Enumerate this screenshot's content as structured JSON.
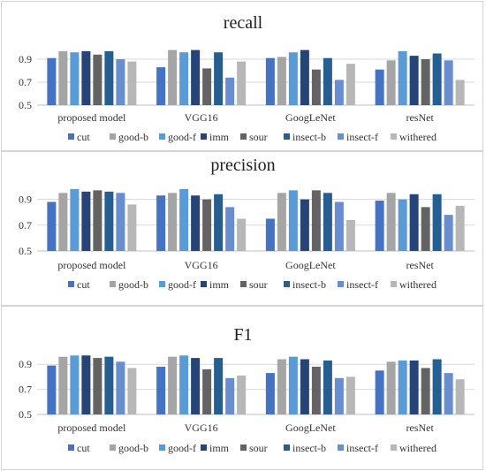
{
  "legend": {
    "series_names": [
      "cut",
      "good-b",
      "good-f",
      "imm",
      "sour",
      "insect-b",
      "insect-f",
      "withered"
    ],
    "colors": [
      "#4472c4",
      "#a5a5a5",
      "#5b9bd5",
      "#264478",
      "#636363",
      "#255e91",
      "#698ed0",
      "#b7b7b7"
    ]
  },
  "chart_data": [
    {
      "type": "bar",
      "title": "recall",
      "categories": [
        "proposed model",
        "VGG16",
        "GoogLeNet",
        "resNet"
      ],
      "ylim": [
        0.5,
        1.0
      ],
      "yticks": [
        "0.5",
        "0.7",
        "0.9"
      ],
      "series": [
        {
          "name": "cut",
          "values": [
            0.91,
            0.83,
            0.91,
            0.81
          ]
        },
        {
          "name": "good-b",
          "values": [
            0.97,
            0.98,
            0.92,
            0.89
          ]
        },
        {
          "name": "good-f",
          "values": [
            0.96,
            0.96,
            0.96,
            0.97
          ]
        },
        {
          "name": "imm",
          "values": [
            0.97,
            0.98,
            0.98,
            0.93
          ]
        },
        {
          "name": "sour",
          "values": [
            0.94,
            0.82,
            0.81,
            0.9
          ]
        },
        {
          "name": "insect-b",
          "values": [
            0.97,
            0.96,
            0.91,
            0.95
          ]
        },
        {
          "name": "insect-f",
          "values": [
            0.9,
            0.74,
            0.72,
            0.89
          ]
        },
        {
          "name": "withered",
          "values": [
            0.88,
            0.88,
            0.86,
            0.72
          ]
        }
      ]
    },
    {
      "type": "bar",
      "title": "precision",
      "categories": [
        "proposed model",
        "VGG16",
        "GoogLeNet",
        "resNet"
      ],
      "ylim": [
        0.5,
        1.0
      ],
      "yticks": [
        "0.5",
        "0.7",
        "0.9"
      ],
      "series": [
        {
          "name": "cut",
          "values": [
            0.88,
            0.93,
            0.75,
            0.89
          ]
        },
        {
          "name": "good-b",
          "values": [
            0.95,
            0.95,
            0.95,
            0.95
          ]
        },
        {
          "name": "good-f",
          "values": [
            0.98,
            0.98,
            0.97,
            0.9
          ]
        },
        {
          "name": "imm",
          "values": [
            0.96,
            0.93,
            0.9,
            0.94
          ]
        },
        {
          "name": "sour",
          "values": [
            0.97,
            0.9,
            0.97,
            0.84
          ]
        },
        {
          "name": "insect-b",
          "values": [
            0.96,
            0.94,
            0.95,
            0.94
          ]
        },
        {
          "name": "insect-f",
          "values": [
            0.95,
            0.84,
            0.88,
            0.78
          ]
        },
        {
          "name": "withered",
          "values": [
            0.86,
            0.75,
            0.74,
            0.85
          ]
        }
      ]
    },
    {
      "type": "bar",
      "title": "F1",
      "categories": [
        "proposed model",
        "VGG16",
        "GoogLeNet",
        "resNet"
      ],
      "ylim": [
        0.5,
        1.0
      ],
      "yticks": [
        "0.5",
        "0.7",
        "0.9"
      ],
      "series": [
        {
          "name": "cut",
          "values": [
            0.89,
            0.88,
            0.83,
            0.85
          ]
        },
        {
          "name": "good-b",
          "values": [
            0.96,
            0.96,
            0.94,
            0.92
          ]
        },
        {
          "name": "good-f",
          "values": [
            0.97,
            0.97,
            0.96,
            0.93
          ]
        },
        {
          "name": "imm",
          "values": [
            0.97,
            0.95,
            0.94,
            0.93
          ]
        },
        {
          "name": "sour",
          "values": [
            0.95,
            0.86,
            0.88,
            0.87
          ]
        },
        {
          "name": "insect-b",
          "values": [
            0.96,
            0.95,
            0.93,
            0.94
          ]
        },
        {
          "name": "insect-f",
          "values": [
            0.92,
            0.79,
            0.79,
            0.83
          ]
        },
        {
          "name": "withered",
          "values": [
            0.87,
            0.81,
            0.8,
            0.78
          ]
        }
      ]
    }
  ]
}
